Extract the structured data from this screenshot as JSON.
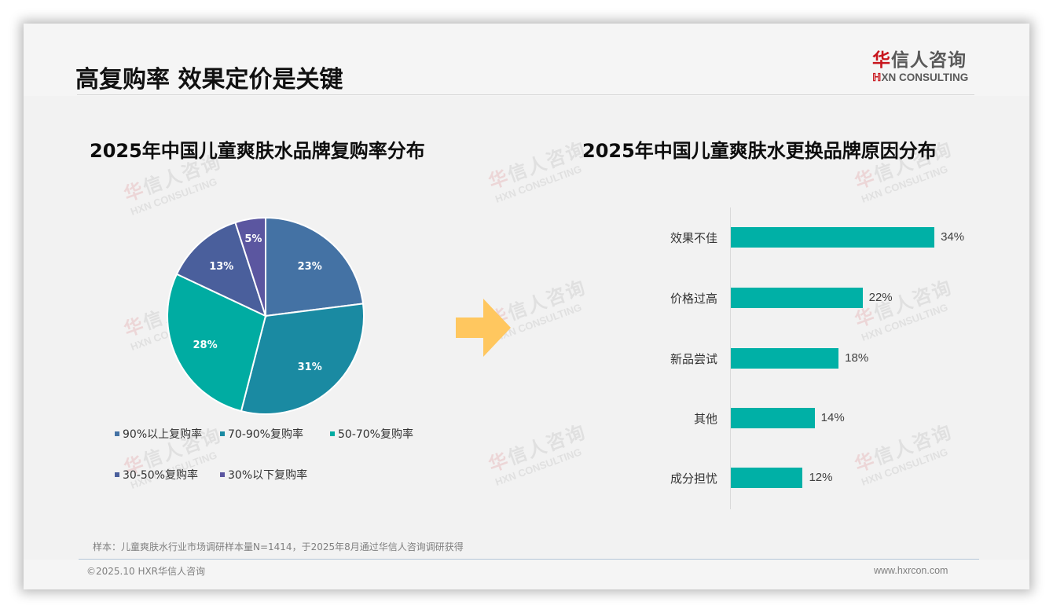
{
  "page": {
    "title": "高复购率 效果定价是关键"
  },
  "logo": {
    "cn_red": "华",
    "cn_rest": "信人咨询",
    "en_mark": "ℍ",
    "en_text": "XN CONSULTING"
  },
  "watermark": {
    "cn_red": "华",
    "cn_rest": "信人咨询",
    "en": "HXN CONSULTING"
  },
  "colors": {
    "bar": "#00b0a6",
    "arrow": "#ffc75f",
    "brand_red": "#c8161d"
  },
  "left_chart": {
    "title": "2025年中国儿童爽肤水品牌复购率分布"
  },
  "right_chart": {
    "title": "2025年中国儿童爽肤水更换品牌原因分布"
  },
  "chart_data": [
    {
      "type": "pie",
      "title": "2025年中国儿童爽肤水品牌复购率分布",
      "categories": [
        "90%以上复购率",
        "70-90%复购率",
        "50-70%复购率",
        "30-50%复购率",
        "30%以下复购率"
      ],
      "values": [
        23,
        31,
        28,
        13,
        5
      ],
      "labels": [
        "23%",
        "31%",
        "28%",
        "13%",
        "5%"
      ],
      "colors": [
        "#4472a4",
        "#1a8aa2",
        "#00aca2",
        "#4a5f9c",
        "#5b56a0"
      ],
      "legend_position": "bottom",
      "start_angle": "12 o'clock, clockwise"
    },
    {
      "type": "bar",
      "orientation": "horizontal",
      "title": "2025年中国儿童爽肤水更换品牌原因分布",
      "categories": [
        "效果不佳",
        "价格过高",
        "新品尝试",
        "其他",
        "成分担忧"
      ],
      "values": [
        34,
        22,
        18,
        14,
        12
      ],
      "labels": [
        "34%",
        "22%",
        "18%",
        "14%",
        "12%"
      ],
      "color": "#00b0a6",
      "xlabel": "",
      "ylabel": "",
      "grid": false
    }
  ],
  "footer": {
    "source": "样本：儿童爽肤水行业市场调研样本量N=1414，于2025年8月通过华信人咨询调研获得",
    "copyright": "©2025.10 HXR华信人咨询",
    "website": "www.hxrcon.com"
  }
}
